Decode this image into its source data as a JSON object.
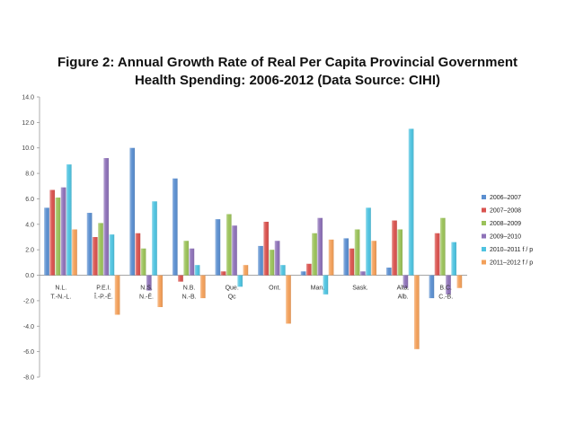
{
  "title_line1": "Figure 2: Annual Growth Rate of Real Per Capita Provincial Government",
  "title_line2": "Health Spending: 2006-2012 (Data Source: CIHI)",
  "chart_data": {
    "type": "bar",
    "title": "Figure 2: Annual Growth Rate of Real Per Capita Provincial Government Health Spending: 2006-2012 (Data Source: CIHI)",
    "ylim": [
      -8,
      14
    ],
    "yticks": [
      "14.0",
      "12.0",
      "10.0",
      "8.0",
      "6.0",
      "4.0",
      "2.0",
      "0.0",
      "-2.0",
      "-4.0",
      "-6.0",
      "-8.0"
    ],
    "categories": [
      {
        "en": "N.L.",
        "fr": "T.-N.-L."
      },
      {
        "en": "P.E.I.",
        "fr": "Î.-P.-É."
      },
      {
        "en": "N.S.",
        "fr": "N.-É."
      },
      {
        "en": "N.B.",
        "fr": "N.-B."
      },
      {
        "en": "Que.",
        "fr": "Qc"
      },
      {
        "en": "Ont.",
        "fr": ""
      },
      {
        "en": "Man.",
        "fr": ""
      },
      {
        "en": "Sask.",
        "fr": ""
      },
      {
        "en": "Alta.",
        "fr": "Alb."
      },
      {
        "en": "B.C.",
        "fr": "C.-B."
      }
    ],
    "series": [
      {
        "name": "2006–2007",
        "color": "#5b8fd0",
        "values": [
          5.3,
          4.9,
          10.0,
          7.6,
          4.4,
          2.3,
          0.3,
          2.9,
          0.6,
          -1.8
        ]
      },
      {
        "name": "2007–2008",
        "color": "#d9534f",
        "values": [
          6.7,
          3.0,
          3.3,
          -0.5,
          0.3,
          4.2,
          0.9,
          2.1,
          4.3,
          3.3
        ]
      },
      {
        "name": "2008–2009",
        "color": "#9bc25a",
        "values": [
          6.1,
          4.1,
          2.1,
          2.7,
          4.8,
          2.0,
          3.3,
          3.6,
          3.6,
          4.5
        ]
      },
      {
        "name": "2009–2010",
        "color": "#8e72b8",
        "values": [
          6.9,
          9.2,
          -1.2,
          2.1,
          3.9,
          2.7,
          4.5,
          0.3,
          -1.0,
          -1.5
        ]
      },
      {
        "name": "2010–2011 f / p",
        "color": "#4fc3e0",
        "values": [
          8.7,
          3.2,
          5.8,
          0.8,
          -0.9,
          0.8,
          -1.5,
          5.3,
          11.5,
          2.6
        ]
      },
      {
        "name": "2011–2012 f / p",
        "color": "#f3a05a",
        "values": [
          3.6,
          -3.1,
          -2.5,
          -1.8,
          0.8,
          -3.8,
          2.8,
          2.7,
          -5.8,
          -1.0
        ]
      }
    ],
    "legend_position": "right",
    "grid": false
  }
}
